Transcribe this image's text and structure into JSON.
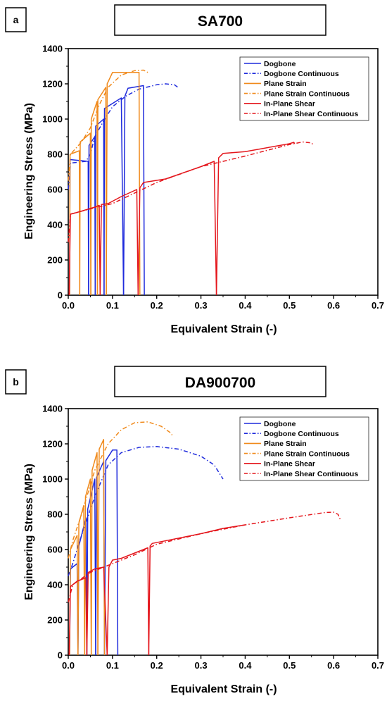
{
  "chart_data": [
    {
      "panel": "a",
      "type": "line",
      "title": "SA700",
      "xlabel": "Equivalent Strain (-)",
      "ylabel": "Engineering Stress (MPa)",
      "xlim": [
        0,
        0.7
      ],
      "ylim": [
        0,
        1400
      ],
      "xticks": [
        "0.0",
        "0.1",
        "0.2",
        "0.3",
        "0.4",
        "0.5",
        "0.6",
        "0.7"
      ],
      "yticks": [
        "0",
        "200",
        "400",
        "600",
        "800",
        "1000",
        "1200",
        "1400"
      ],
      "legend_position": "top-right",
      "grid": false,
      "series": [
        {
          "name": "Dogbone",
          "color": "#1f2bdc",
          "dash": "solid",
          "segments": [
            [
              [
                0.003,
                0
              ],
              [
                0.004,
                770
              ],
              [
                0.045,
                760
              ],
              [
                0.046,
                0
              ]
            ],
            [
              [
                0.046,
                0
              ],
              [
                0.047,
                850
              ],
              [
                0.06,
                900
              ],
              [
                0.061,
                0
              ]
            ],
            [
              [
                0.061,
                0
              ],
              [
                0.062,
                960
              ],
              [
                0.08,
                1000
              ],
              [
                0.081,
                0
              ]
            ],
            [
              [
                0.081,
                0
              ],
              [
                0.082,
                1060
              ],
              [
                0.12,
                1120
              ],
              [
                0.125,
                0
              ]
            ],
            [
              [
                0.125,
                0
              ],
              [
                0.128,
                1130
              ],
              [
                0.135,
                1175
              ],
              [
                0.17,
                1190
              ],
              [
                0.172,
                0
              ]
            ]
          ]
        },
        {
          "name": "Dogbone Continuous",
          "color": "#1f2bdc",
          "dash": "6,3,1.5,3",
          "segments": [
            [
              [
                0.0,
                600
              ],
              [
                0.005,
                750
              ],
              [
                0.04,
                760
              ],
              [
                0.05,
                800
              ],
              [
                0.06,
                900
              ],
              [
                0.08,
                990
              ],
              [
                0.1,
                1070
              ],
              [
                0.13,
                1130
              ],
              [
                0.16,
                1170
              ],
              [
                0.2,
                1195
              ],
              [
                0.22,
                1200
              ],
              [
                0.24,
                1195
              ],
              [
                0.248,
                1180
              ]
            ]
          ]
        },
        {
          "name": "Plane Strain",
          "color": "#f08a1c",
          "dash": "solid",
          "segments": [
            [
              [
                0.003,
                0
              ],
              [
                0.004,
                800
              ],
              [
                0.025,
                820
              ],
              [
                0.026,
                0
              ]
            ],
            [
              [
                0.026,
                0
              ],
              [
                0.027,
                870
              ],
              [
                0.05,
                920
              ],
              [
                0.051,
                0
              ]
            ],
            [
              [
                0.051,
                0
              ],
              [
                0.052,
                1000
              ],
              [
                0.065,
                1100
              ],
              [
                0.066,
                0
              ]
            ],
            [
              [
                0.066,
                0
              ],
              [
                0.067,
                1110
              ],
              [
                0.085,
                1180
              ],
              [
                0.086,
                0
              ]
            ],
            [
              [
                0.086,
                0
              ],
              [
                0.088,
                1200
              ],
              [
                0.1,
                1265
              ],
              [
                0.13,
                1265
              ],
              [
                0.16,
                1265
              ],
              [
                0.162,
                0
              ]
            ]
          ]
        },
        {
          "name": "Plane Strain Continuous",
          "color": "#f08a1c",
          "dash": "6,3,1.5,3",
          "segments": [
            [
              [
                0.0,
                650
              ],
              [
                0.005,
                800
              ],
              [
                0.03,
                870
              ],
              [
                0.05,
                950
              ],
              [
                0.07,
                1080
              ],
              [
                0.09,
                1180
              ],
              [
                0.12,
                1250
              ],
              [
                0.15,
                1275
              ],
              [
                0.17,
                1278
              ],
              [
                0.18,
                1265
              ]
            ]
          ]
        },
        {
          "name": "In-Plane Shear",
          "color": "#e4161c",
          "dash": "solid",
          "segments": [
            [
              [
                0.002,
                0
              ],
              [
                0.005,
                460
              ],
              [
                0.02,
                470
              ],
              [
                0.06,
                500
              ],
              [
                0.07,
                510
              ],
              [
                0.072,
                0
              ]
            ],
            [
              [
                0.072,
                0
              ],
              [
                0.075,
                515
              ],
              [
                0.09,
                520
              ],
              [
                0.12,
                560
              ],
              [
                0.155,
                600
              ],
              [
                0.158,
                0
              ]
            ],
            [
              [
                0.158,
                0
              ],
              [
                0.162,
                610
              ],
              [
                0.17,
                640
              ],
              [
                0.22,
                660
              ],
              [
                0.3,
                730
              ],
              [
                0.33,
                760
              ],
              [
                0.335,
                0
              ]
            ],
            [
              [
                0.335,
                0
              ],
              [
                0.34,
                780
              ],
              [
                0.35,
                805
              ],
              [
                0.4,
                815
              ],
              [
                0.5,
                860
              ],
              [
                0.51,
                868
              ],
              [
                0.512,
                860
              ]
            ]
          ]
        },
        {
          "name": "In-Plane Shear Continuous",
          "color": "#e4161c",
          "dash": "6,3,1.5,3",
          "segments": [
            [
              [
                0.0,
                300
              ],
              [
                0.005,
                460
              ],
              [
                0.05,
                490
              ],
              [
                0.1,
                520
              ],
              [
                0.15,
                580
              ],
              [
                0.2,
                640
              ],
              [
                0.3,
                730
              ],
              [
                0.4,
                790
              ],
              [
                0.5,
                855
              ],
              [
                0.53,
                870
              ],
              [
                0.55,
                865
              ],
              [
                0.555,
                850
              ]
            ]
          ]
        }
      ]
    },
    {
      "panel": "b",
      "type": "line",
      "title": "DA900700",
      "xlabel": "Equivalent Strain (-)",
      "ylabel": "Engineering Stress (MPa)",
      "xlim": [
        0,
        0.7
      ],
      "ylim": [
        0,
        1400
      ],
      "xticks": [
        "0.0",
        "0.1",
        "0.2",
        "0.3",
        "0.4",
        "0.5",
        "0.6",
        "0.7"
      ],
      "yticks": [
        "0",
        "200",
        "400",
        "600",
        "800",
        "1000",
        "1200",
        "1400"
      ],
      "legend_position": "top-right",
      "grid": false,
      "series": [
        {
          "name": "Dogbone",
          "color": "#1f2bdc",
          "dash": "solid",
          "segments": [
            [
              [
                0.003,
                0
              ],
              [
                0.005,
                490
              ],
              [
                0.02,
                520
              ],
              [
                0.022,
                0
              ]
            ],
            [
              [
                0.022,
                0
              ],
              [
                0.024,
                620
              ],
              [
                0.04,
                780
              ],
              [
                0.042,
                0
              ]
            ],
            [
              [
                0.042,
                0
              ],
              [
                0.044,
                830
              ],
              [
                0.06,
                1000
              ],
              [
                0.062,
                0
              ]
            ],
            [
              [
                0.062,
                0
              ],
              [
                0.064,
                1010
              ],
              [
                0.08,
                1100
              ],
              [
                0.082,
                0
              ]
            ],
            [
              [
                0.082,
                0
              ],
              [
                0.085,
                1105
              ],
              [
                0.1,
                1165
              ],
              [
                0.11,
                1165
              ],
              [
                0.112,
                0
              ]
            ]
          ]
        },
        {
          "name": "Dogbone Continuous",
          "color": "#1f2bdc",
          "dash": "6,3,1.5,3",
          "segments": [
            [
              [
                0.0,
                450
              ],
              [
                0.01,
                520
              ],
              [
                0.03,
                680
              ],
              [
                0.06,
                900
              ],
              [
                0.09,
                1080
              ],
              [
                0.12,
                1150
              ],
              [
                0.16,
                1180
              ],
              [
                0.2,
                1185
              ],
              [
                0.25,
                1170
              ],
              [
                0.3,
                1130
              ],
              [
                0.33,
                1080
              ],
              [
                0.35,
                1000
              ]
            ]
          ]
        },
        {
          "name": "Plane Strain",
          "color": "#f08a1c",
          "dash": "solid",
          "segments": [
            [
              [
                0.003,
                0
              ],
              [
                0.005,
                600
              ],
              [
                0.02,
                680
              ],
              [
                0.022,
                0
              ]
            ],
            [
              [
                0.022,
                0
              ],
              [
                0.024,
                750
              ],
              [
                0.035,
                850
              ],
              [
                0.037,
                0
              ]
            ],
            [
              [
                0.037,
                0
              ],
              [
                0.039,
                900
              ],
              [
                0.05,
                1000
              ],
              [
                0.052,
                0
              ]
            ],
            [
              [
                0.052,
                0
              ],
              [
                0.054,
                1050
              ],
              [
                0.065,
                1150
              ],
              [
                0.067,
                0
              ]
            ],
            [
              [
                0.067,
                0
              ],
              [
                0.07,
                1170
              ],
              [
                0.08,
                1225
              ],
              [
                0.082,
                0
              ]
            ]
          ]
        },
        {
          "name": "Plane Strain Continuous",
          "color": "#f08a1c",
          "dash": "6,3,1.5,3",
          "segments": [
            [
              [
                0.0,
                550
              ],
              [
                0.01,
                650
              ],
              [
                0.03,
                800
              ],
              [
                0.06,
                1050
              ],
              [
                0.09,
                1200
              ],
              [
                0.12,
                1280
              ],
              [
                0.15,
                1320
              ],
              [
                0.18,
                1325
              ],
              [
                0.21,
                1300
              ],
              [
                0.23,
                1265
              ],
              [
                0.235,
                1250
              ]
            ]
          ]
        },
        {
          "name": "In-Plane Shear",
          "color": "#e4161c",
          "dash": "solid",
          "segments": [
            [
              [
                0.002,
                0
              ],
              [
                0.005,
                390
              ],
              [
                0.02,
                420
              ],
              [
                0.04,
                440
              ],
              [
                0.042,
                0
              ]
            ],
            [
              [
                0.042,
                0
              ],
              [
                0.045,
                470
              ],
              [
                0.06,
                490
              ],
              [
                0.08,
                500
              ],
              [
                0.088,
                0
              ]
            ],
            [
              [
                0.088,
                0
              ],
              [
                0.092,
                500
              ],
              [
                0.1,
                540
              ],
              [
                0.12,
                550
              ],
              [
                0.17,
                600
              ],
              [
                0.18,
                610
              ],
              [
                0.182,
                0
              ]
            ],
            [
              [
                0.182,
                0
              ],
              [
                0.185,
                620
              ],
              [
                0.19,
                635
              ],
              [
                0.25,
                665
              ],
              [
                0.3,
                690
              ],
              [
                0.35,
                720
              ],
              [
                0.4,
                740
              ]
            ]
          ]
        },
        {
          "name": "In-Plane Shear Continuous",
          "color": "#e4161c",
          "dash": "6,3,1.5,3",
          "segments": [
            [
              [
                0.0,
                300
              ],
              [
                0.01,
                400
              ],
              [
                0.05,
                470
              ],
              [
                0.1,
                520
              ],
              [
                0.15,
                570
              ],
              [
                0.2,
                630
              ],
              [
                0.3,
                690
              ],
              [
                0.4,
                740
              ],
              [
                0.5,
                780
              ],
              [
                0.58,
                810
              ],
              [
                0.6,
                812
              ],
              [
                0.61,
                800
              ],
              [
                0.615,
                770
              ]
            ]
          ]
        }
      ]
    }
  ]
}
